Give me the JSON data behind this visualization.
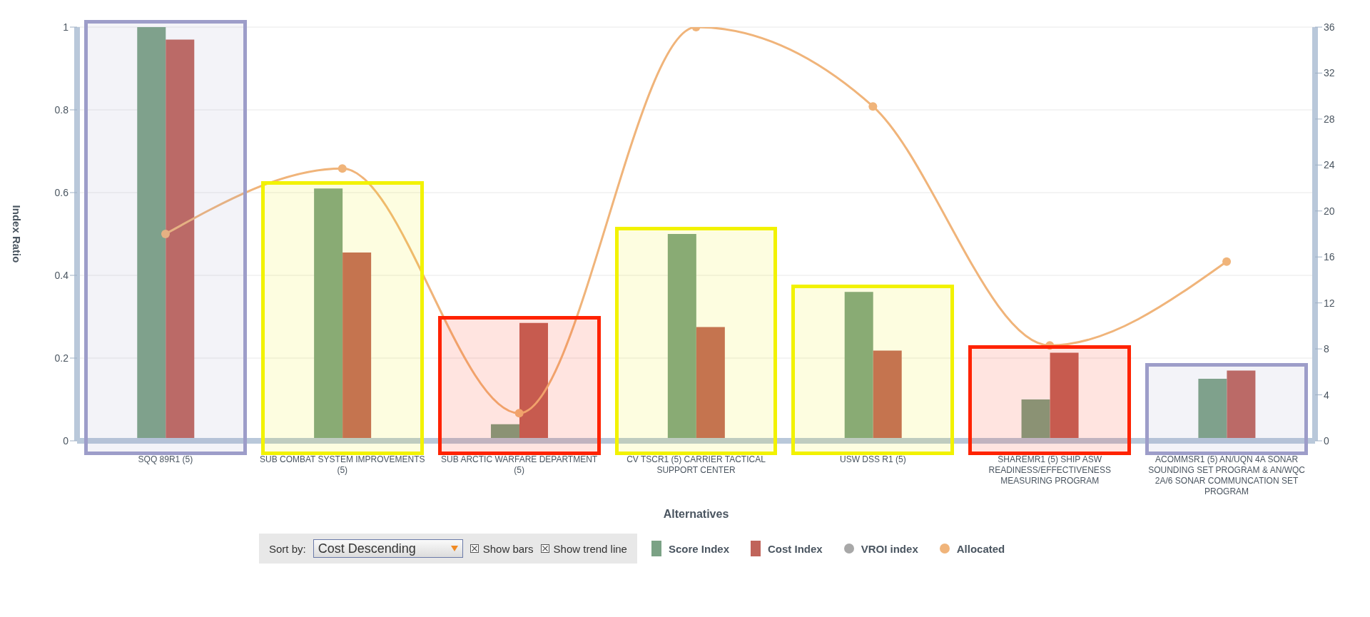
{
  "chart_data": {
    "type": "bar",
    "xlabel": "Alternatives",
    "ylabel": "Index Ratio",
    "categories": [
      "SQQ 89R1  (5)",
      "SUB COMBAT SYSTEM IMPROVEMENTS   (5)",
      "SUB ARCTIC WARFARE DEPARTMENT   (5)",
      "CV TSCR1  (5)  CARRIER TACTICAL SUPPORT CENTER",
      "USW DSS R1  (5)",
      "SHAREMR1  (5)  SHIP ASW READINESS/EFFECTIVENESS MEASURING PROGRAM",
      "ACOMMSR1  (5)  AN/UQN 4A SONAR SOUNDING SET PROGRAM & AN/WQC 2A/6 SONAR COMMUNCATION SET PROGRAM"
    ],
    "series": [
      {
        "name": "Score Index",
        "color": "#7ba285",
        "values": [
          1.0,
          0.61,
          0.04,
          0.5,
          0.36,
          0.1,
          0.15
        ]
      },
      {
        "name": "Cost Index",
        "color": "#c0645a",
        "values": [
          0.97,
          0.455,
          0.285,
          0.275,
          0.218,
          0.213,
          0.17
        ]
      },
      {
        "name": "VROI index",
        "type": "scatter",
        "color": "#a8a8a8",
        "values": [
          null,
          null,
          null,
          null,
          null,
          null,
          null
        ]
      },
      {
        "name": "Allocated",
        "type": "line",
        "axis": "y2",
        "color": "#f0b47a",
        "values": [
          18.0,
          23.7,
          2.4,
          36,
          29.1,
          8.3,
          15.6
        ]
      }
    ],
    "ylim": [
      0,
      1
    ],
    "yticks": [
      0,
      0.2,
      0.4,
      0.6,
      0.8,
      1
    ],
    "y2lim": [
      0,
      36
    ],
    "y2ticks": [
      0,
      4,
      8,
      12,
      16,
      20,
      24,
      28,
      32,
      36
    ],
    "bands": [
      {
        "axis": "x",
        "from": "SQQ 89R1  (5)",
        "to": "SQQ 89R1  (5)",
        "color": "#9d9dc9"
      },
      {
        "axis": "x",
        "from": "SUB COMBAT SYSTEM IMPROVEMENTS   (5)",
        "to": "SUB COMBAT SYSTEM IMPROVEMENTS   (5)",
        "color": "#f2f200"
      },
      {
        "axis": "x",
        "from": "SUB ARCTIC WARFARE DEPARTMENT   (5)",
        "to": "SUB ARCTIC WARFARE DEPARTMENT   (5)",
        "color": "#ff2200"
      },
      {
        "axis": "x",
        "from": "CV TSCR1  (5)  CARRIER TACTICAL SUPPORT CENTER",
        "to": "CV TSCR1  (5)  CARRIER TACTICAL SUPPORT CENTER",
        "color": "#f2f200"
      },
      {
        "axis": "x",
        "from": "USW DSS R1  (5)",
        "to": "USW DSS R1  (5)",
        "color": "#f2f200"
      },
      {
        "axis": "x",
        "from": "SHAREMR1  (5)  SHIP ASW READINESS/EFFECTIVENESS MEASURING PROGRAM",
        "to": "SHAREMR1  (5)  SHIP ASW READINESS/EFFECTIVENESS MEASURING PROGRAM",
        "color": "#ff2200"
      },
      {
        "axis": "x",
        "from": "ACOMMSR1  (5)  AN/UQN 4A SONAR SOUNDING SET PROGRAM & AN/WQC 2A/6 SONAR COMMUNCATION SET PROGRAM",
        "to": "ACOMMSR1  (5)  AN/UQN 4A SONAR SOUNDING SET PROGRAM & AN/WQC 2A/6 SONAR COMMUNCATION SET PROGRAM",
        "color": "#9d9dc9"
      }
    ],
    "annotations": [
      "Sort by:",
      "Cost Descending",
      "Show bars",
      "Show trend line"
    ],
    "grid": "y",
    "legend": "bottom",
    "marker": "circle",
    "line_style": "solid"
  }
}
